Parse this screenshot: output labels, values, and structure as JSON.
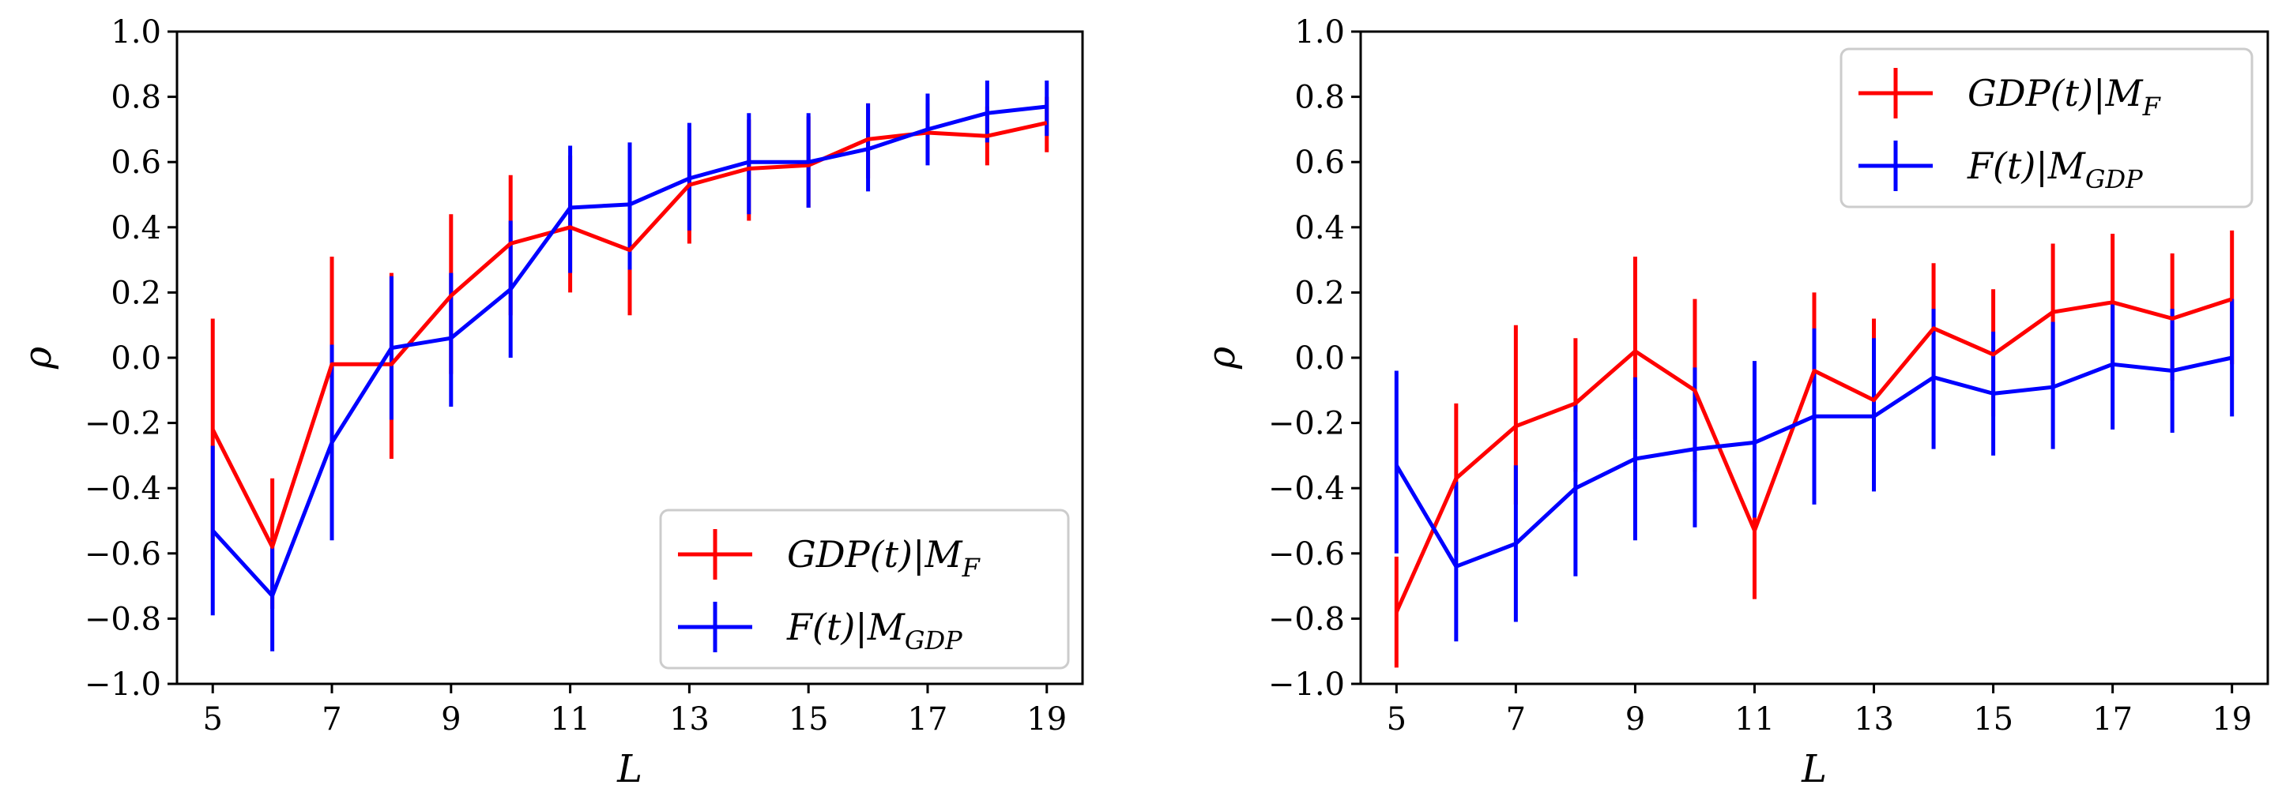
{
  "chart_data": [
    {
      "type": "line",
      "title": "",
      "xlabel": "L",
      "ylabel": "ρ",
      "xlim": [
        4.4,
        19.6
      ],
      "ylim": [
        -1.0,
        1.0
      ],
      "xticks": [
        5,
        7,
        9,
        11,
        13,
        15,
        17,
        19
      ],
      "xtick_labels": [
        "5",
        "7",
        "9",
        "11",
        "13",
        "15",
        "17",
        "19"
      ],
      "yticks": [
        -1.0,
        -0.8,
        -0.6,
        -0.4,
        -0.2,
        0.0,
        0.2,
        0.4,
        0.6,
        0.8,
        1.0
      ],
      "ytick_labels": [
        "−1.0",
        "−0.8",
        "−0.6",
        "−0.4",
        "−0.2",
        "0.0",
        "0.2",
        "0.4",
        "0.6",
        "0.8",
        "1.0"
      ],
      "legend_position": "lower-right",
      "grid": false,
      "x": [
        5,
        6,
        7,
        8,
        9,
        10,
        11,
        12,
        13,
        14,
        15,
        16,
        17,
        18,
        19
      ],
      "series": [
        {
          "name": "GDP(t)|M_F",
          "legend_main": "GDP(t)|M",
          "legend_sub": "F",
          "color": "#ff0000",
          "values": [
            -0.22,
            -0.58,
            -0.02,
            -0.02,
            0.19,
            0.35,
            0.4,
            0.33,
            0.53,
            0.58,
            0.59,
            0.67,
            0.69,
            0.68,
            0.72
          ],
          "err_low": [
            -0.62,
            -0.77,
            -0.37,
            -0.31,
            -0.05,
            0.13,
            0.2,
            0.13,
            0.35,
            0.42,
            0.46,
            0.55,
            0.6,
            0.59,
            0.63
          ],
          "err_high": [
            0.12,
            -0.37,
            0.31,
            0.26,
            0.44,
            0.56,
            0.62,
            0.58,
            0.7,
            0.73,
            0.74,
            0.78,
            0.78,
            0.77,
            0.8
          ]
        },
        {
          "name": "F(t)|M_GDP",
          "legend_main": "F(t)|M",
          "legend_sub": "GDP",
          "color": "#0000ff",
          "values": [
            -0.53,
            -0.73,
            -0.26,
            0.03,
            0.06,
            0.21,
            0.46,
            0.47,
            0.55,
            0.6,
            0.6,
            0.64,
            0.7,
            0.75,
            0.77
          ],
          "err_low": [
            -0.79,
            -0.9,
            -0.56,
            -0.19,
            -0.15,
            0.0,
            0.26,
            0.27,
            0.39,
            0.44,
            0.46,
            0.51,
            0.59,
            0.66,
            0.68
          ],
          "err_high": [
            -0.27,
            -0.56,
            0.04,
            0.25,
            0.26,
            0.42,
            0.65,
            0.66,
            0.72,
            0.75,
            0.75,
            0.78,
            0.81,
            0.85,
            0.85
          ]
        }
      ]
    },
    {
      "type": "line",
      "title": "",
      "xlabel": "L",
      "ylabel": "ρ",
      "xlim": [
        4.4,
        19.6
      ],
      "ylim": [
        -1.0,
        1.0
      ],
      "xticks": [
        5,
        7,
        9,
        11,
        13,
        15,
        17,
        19
      ],
      "xtick_labels": [
        "5",
        "7",
        "9",
        "11",
        "13",
        "15",
        "17",
        "19"
      ],
      "yticks": [
        -1.0,
        -0.8,
        -0.6,
        -0.4,
        -0.2,
        0.0,
        0.2,
        0.4,
        0.6,
        0.8,
        1.0
      ],
      "ytick_labels": [
        "−1.0",
        "−0.8",
        "−0.6",
        "−0.4",
        "−0.2",
        "0.0",
        "0.2",
        "0.4",
        "0.6",
        "0.8",
        "1.0"
      ],
      "legend_position": "upper-right",
      "grid": false,
      "x": [
        5,
        6,
        7,
        8,
        9,
        10,
        11,
        12,
        13,
        14,
        15,
        16,
        17,
        18,
        19
      ],
      "series": [
        {
          "name": "GDP(t)|M_F",
          "legend_main": "GDP(t)|M",
          "legend_sub": "F",
          "color": "#ff0000",
          "values": [
            -0.78,
            -0.37,
            -0.21,
            -0.14,
            0.02,
            -0.1,
            -0.53,
            -0.04,
            -0.13,
            0.09,
            0.01,
            0.14,
            0.17,
            0.12,
            0.18
          ],
          "err_low": [
            -0.95,
            -0.6,
            -0.45,
            -0.35,
            -0.25,
            -0.35,
            -0.74,
            -0.25,
            -0.32,
            -0.1,
            -0.18,
            -0.08,
            -0.02,
            -0.07,
            -0.02
          ],
          "err_high": [
            -0.61,
            -0.14,
            0.1,
            0.06,
            0.31,
            0.18,
            -0.32,
            0.2,
            0.12,
            0.29,
            0.21,
            0.35,
            0.38,
            0.32,
            0.39
          ]
        },
        {
          "name": "F(t)|M_GDP",
          "legend_main": "F(t)|M",
          "legend_sub": "GDP",
          "color": "#0000ff",
          "values": [
            -0.33,
            -0.64,
            -0.57,
            -0.4,
            -0.31,
            -0.28,
            -0.26,
            -0.18,
            -0.18,
            -0.06,
            -0.11,
            -0.09,
            -0.02,
            -0.04,
            0.0
          ],
          "err_low": [
            -0.6,
            -0.87,
            -0.81,
            -0.67,
            -0.56,
            -0.52,
            -0.49,
            -0.45,
            -0.41,
            -0.28,
            -0.3,
            -0.28,
            -0.22,
            -0.23,
            -0.18
          ],
          "err_high": [
            -0.04,
            -0.38,
            -0.33,
            -0.14,
            -0.06,
            -0.03,
            -0.01,
            0.09,
            0.06,
            0.15,
            0.08,
            0.11,
            0.17,
            0.15,
            0.18
          ]
        }
      ]
    }
  ]
}
